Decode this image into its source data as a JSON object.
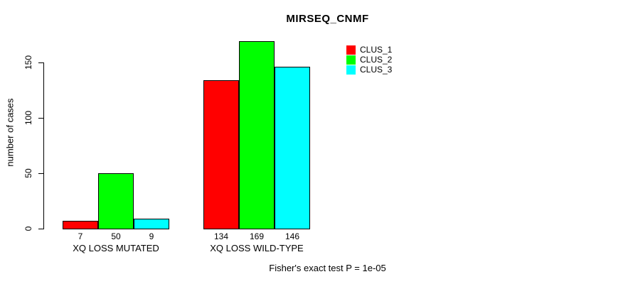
{
  "page": {
    "background": "#ffffff"
  },
  "title": "MIRSEQ_CNMF",
  "y_axis": {
    "label": "number of cases",
    "ticks": [
      0,
      50,
      100,
      150
    ]
  },
  "footer": "Fisher's exact test P = 1e-05",
  "legend": {
    "position": "top-right",
    "items": [
      {
        "label": "CLUS_1",
        "color": "#ff0000"
      },
      {
        "label": "CLUS_2",
        "color": "#00ff00"
      },
      {
        "label": "CLUS_3",
        "color": "#00ffff"
      }
    ]
  },
  "chart_data": {
    "type": "bar",
    "title": "MIRSEQ_CNMF",
    "categories": [
      "XQ LOSS MUTATED",
      "XQ LOSS WILD-TYPE"
    ],
    "series": [
      {
        "name": "CLUS_1",
        "color": "#ff0000",
        "values": [
          7,
          134
        ]
      },
      {
        "name": "CLUS_2",
        "color": "#00ff00",
        "values": [
          50,
          169
        ]
      },
      {
        "name": "CLUS_3",
        "color": "#00ffff",
        "values": [
          9,
          146
        ]
      }
    ],
    "xlabel": "",
    "ylabel": "number of cases",
    "ylim": [
      0,
      169
    ],
    "y_ticks": [
      0,
      50,
      100,
      150
    ],
    "grid": false,
    "legend_position": "top-right",
    "bar_value_labels": [
      [
        7,
        50,
        9
      ],
      [
        134,
        169,
        146
      ]
    ],
    "annotation": "Fisher's exact test P = 1e-05"
  }
}
